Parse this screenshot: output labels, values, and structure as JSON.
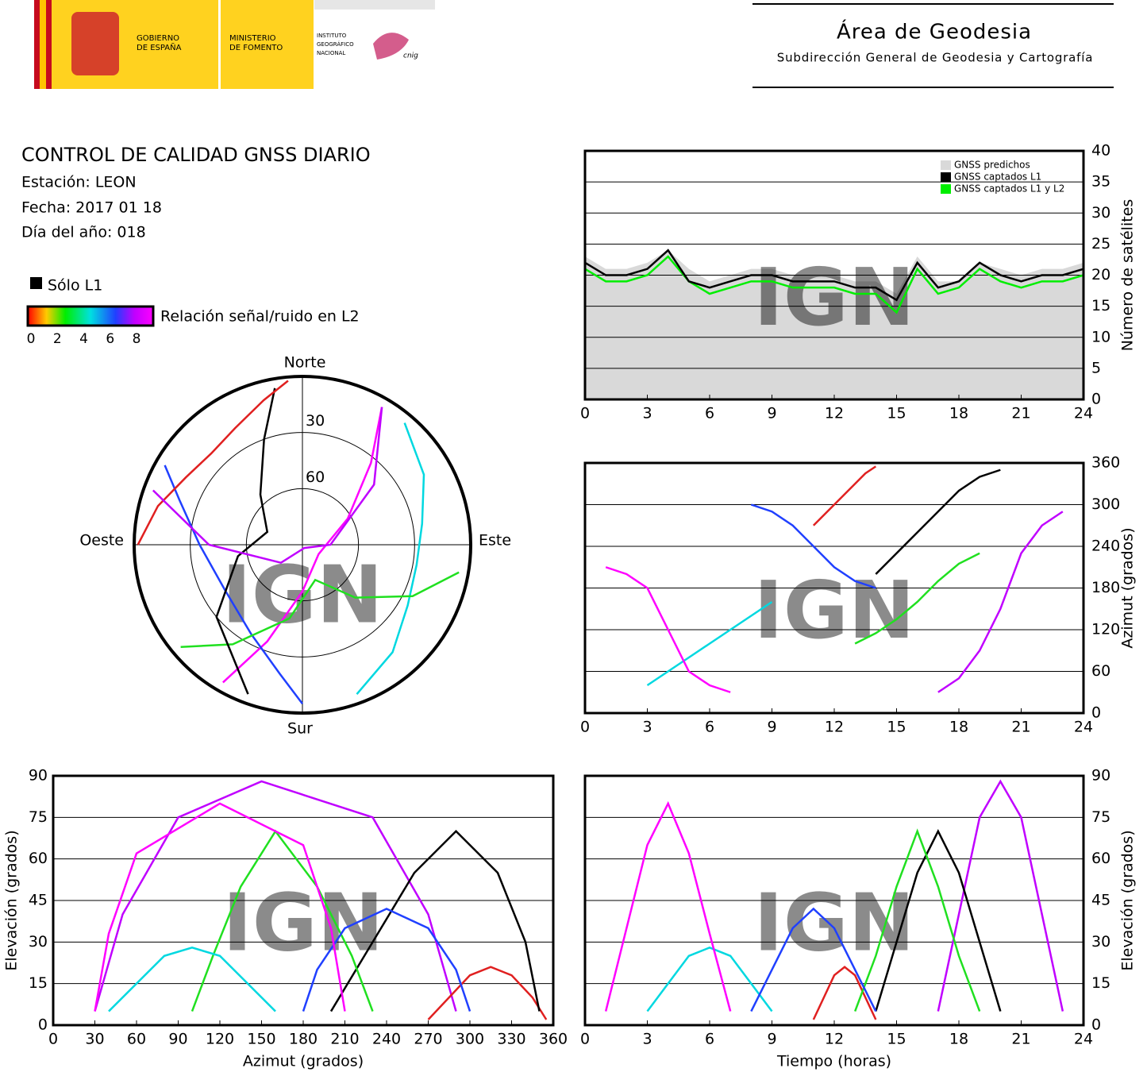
{
  "header": {
    "gobierno": [
      "GOBIERNO",
      "DE ESPAÑA"
    ],
    "ministerio": [
      "MINISTERIO",
      "DE FOMENTO"
    ],
    "instituto": [
      "INSTITUTO",
      "GEOGRÁFICO",
      "NACIONAL"
    ],
    "cnig": "cnig",
    "area": "Área de Geodesia",
    "subdireccion": "Subdirección General de Geodesia y Cartografía"
  },
  "report": {
    "title": "CONTROL DE CALIDAD GNSS DIARIO",
    "station": "Estación: LEON",
    "date": "Fecha: 2017 01 18",
    "doy": "Día del año: 018",
    "l1_only": "Sólo L1",
    "snr_label": "Relación señal/ruido en L2",
    "snr_ticks": [
      0,
      2,
      4,
      6,
      8
    ]
  },
  "watermark": "IGN",
  "chart_data": [
    {
      "type": "line",
      "y_label": "Número de satélites",
      "yaxis": "right",
      "x": [
        0,
        1,
        2,
        3,
        4,
        5,
        6,
        7,
        8,
        9,
        10,
        11,
        12,
        13,
        14,
        15,
        16,
        17,
        18,
        19,
        20,
        21,
        22,
        23,
        24
      ],
      "series": [
        {
          "name": "GNSS predichos",
          "color": "#d9d9d9",
          "fill": true,
          "values": [
            23,
            21,
            21,
            22,
            24,
            21,
            19,
            20,
            21,
            21,
            20,
            20,
            20,
            19,
            19,
            17,
            23,
            19,
            19,
            22,
            21,
            20,
            21,
            21,
            22
          ]
        },
        {
          "name": "GNSS captados L1",
          "color": "#000000",
          "values": [
            22,
            20,
            20,
            21,
            24,
            19,
            18,
            19,
            20,
            20,
            19,
            19,
            19,
            18,
            18,
            16,
            22,
            18,
            19,
            22,
            20,
            19,
            20,
            20,
            21
          ]
        },
        {
          "name": "GNSS captados L1 y L2",
          "color": "#00ee00",
          "values": [
            21,
            19,
            19,
            20,
            23,
            19,
            17,
            18,
            19,
            19,
            18,
            18,
            18,
            17,
            17,
            14,
            21,
            17,
            18,
            21,
            19,
            18,
            19,
            19,
            20
          ]
        }
      ],
      "xlim": [
        0,
        24
      ],
      "xticks": [
        0,
        3,
        6,
        9,
        12,
        15,
        18,
        21,
        24
      ],
      "ylim": [
        0,
        40
      ],
      "yticks": [
        0,
        5,
        10,
        15,
        20,
        25,
        30,
        35,
        40
      ],
      "grid": true,
      "legend": "upper right"
    },
    {
      "type": "polar",
      "directions": {
        "north": "Norte",
        "south": "Sur",
        "east": "Este",
        "west": "Oeste"
      },
      "rlim": [
        90,
        0
      ],
      "rticks": [
        30,
        60
      ],
      "series": [
        {
          "color": "#ff00ff",
          "x": [
            210,
            200,
            180,
            120,
            60,
            40,
            30
          ],
          "values": [
            5,
            35,
            65,
            80,
            62,
            33,
            5
          ]
        },
        {
          "color": "#2040ff",
          "x": [
            300,
            290,
            270,
            240,
            210,
            190,
            180
          ],
          "values": [
            5,
            20,
            35,
            42,
            35,
            20,
            5
          ]
        },
        {
          "color": "#00d8e0",
          "x": [
            40,
            60,
            80,
            100,
            120,
            140,
            160
          ],
          "values": [
            5,
            15,
            25,
            28,
            25,
            15,
            5
          ]
        },
        {
          "color": "#20e020",
          "x": [
            100,
            115,
            135,
            160,
            190,
            215,
            230
          ],
          "values": [
            5,
            25,
            50,
            70,
            50,
            25,
            5
          ]
        },
        {
          "color": "#000000",
          "x": [
            200,
            230,
            260,
            290,
            320,
            340,
            350
          ],
          "values": [
            5,
            30,
            55,
            70,
            55,
            30,
            5
          ]
        },
        {
          "color": "#e02020",
          "x": [
            270,
            285,
            300,
            315,
            330,
            345,
            355
          ],
          "values": [
            2,
            10,
            18,
            21,
            18,
            10,
            2
          ]
        },
        {
          "color": "#c000ff",
          "x": [
            30,
            50,
            90,
            150,
            230,
            270,
            290
          ],
          "values": [
            5,
            40,
            75,
            88,
            75,
            40,
            5
          ]
        }
      ]
    },
    {
      "type": "line",
      "y_label": "Azimut (grados)",
      "yaxis": "right",
      "series": [
        {
          "color": "#ff00ff",
          "x": [
            1,
            2,
            3,
            4,
            5,
            6,
            7
          ],
          "values": [
            210,
            200,
            180,
            120,
            60,
            40,
            30
          ]
        },
        {
          "color": "#2040ff",
          "x": [
            8,
            9,
            10,
            11,
            12,
            13,
            14
          ],
          "values": [
            300,
            290,
            270,
            240,
            210,
            190,
            180
          ]
        },
        {
          "color": "#00d8e0",
          "x": [
            3,
            4,
            5,
            6,
            7,
            8,
            9
          ],
          "values": [
            40,
            60,
            80,
            100,
            120,
            140,
            160
          ]
        },
        {
          "color": "#20e020",
          "x": [
            13,
            14,
            15,
            16,
            17,
            18,
            19
          ],
          "values": [
            100,
            115,
            135,
            160,
            190,
            215,
            230
          ]
        },
        {
          "color": "#000000",
          "x": [
            14,
            15,
            16,
            17,
            18,
            19,
            20
          ],
          "values": [
            200,
            230,
            260,
            290,
            320,
            340,
            350
          ]
        },
        {
          "color": "#e02020",
          "x": [
            11,
            11.5,
            12,
            12.5,
            13,
            13.5,
            14
          ],
          "values": [
            270,
            285,
            300,
            315,
            330,
            345,
            355
          ]
        },
        {
          "color": "#c000ff",
          "x": [
            17,
            18,
            19,
            20,
            21,
            22,
            23
          ],
          "values": [
            30,
            50,
            90,
            150,
            230,
            270,
            290
          ]
        }
      ],
      "xlim": [
        0,
        24
      ],
      "xticks": [
        0,
        3,
        6,
        9,
        12,
        15,
        18,
        21,
        24
      ],
      "ylim": [
        0,
        360
      ],
      "yticks": [
        0,
        60,
        120,
        180,
        240,
        300,
        360
      ],
      "grid": true
    },
    {
      "type": "line",
      "x_label": "Azimut (grados)",
      "y_label": "Elevación (grados)",
      "yaxis": "left",
      "series": [
        {
          "color": "#ff00ff",
          "x": [
            210,
            200,
            180,
            120,
            60,
            40,
            30
          ],
          "values": [
            5,
            35,
            65,
            80,
            62,
            33,
            5
          ]
        },
        {
          "color": "#2040ff",
          "x": [
            300,
            290,
            270,
            240,
            210,
            190,
            180
          ],
          "values": [
            5,
            20,
            35,
            42,
            35,
            20,
            5
          ]
        },
        {
          "color": "#00d8e0",
          "x": [
            40,
            60,
            80,
            100,
            120,
            140,
            160
          ],
          "values": [
            5,
            15,
            25,
            28,
            25,
            15,
            5
          ]
        },
        {
          "color": "#20e020",
          "x": [
            100,
            115,
            135,
            160,
            190,
            215,
            230
          ],
          "values": [
            5,
            25,
            50,
            70,
            50,
            25,
            5
          ]
        },
        {
          "color": "#000000",
          "x": [
            200,
            230,
            260,
            290,
            320,
            340,
            350
          ],
          "values": [
            5,
            30,
            55,
            70,
            55,
            30,
            5
          ]
        },
        {
          "color": "#e02020",
          "x": [
            270,
            285,
            300,
            315,
            330,
            345,
            355
          ],
          "values": [
            2,
            10,
            18,
            21,
            18,
            10,
            2
          ]
        },
        {
          "color": "#c000ff",
          "x": [
            30,
            50,
            90,
            150,
            230,
            270,
            290
          ],
          "values": [
            5,
            40,
            75,
            88,
            75,
            40,
            5
          ]
        }
      ],
      "xlim": [
        0,
        360
      ],
      "xticks": [
        0,
        30,
        60,
        90,
        120,
        150,
        180,
        210,
        240,
        270,
        300,
        330,
        360
      ],
      "ylim": [
        0,
        90
      ],
      "yticks": [
        0,
        15,
        30,
        45,
        60,
        75,
        90
      ],
      "grid": true
    },
    {
      "type": "line",
      "x_label": "Tiempo (horas)",
      "y_label": "Elevación (grados)",
      "yaxis": "right",
      "series": [
        {
          "color": "#ff00ff",
          "x": [
            1,
            2,
            3,
            4,
            5,
            6,
            7
          ],
          "values": [
            5,
            35,
            65,
            80,
            62,
            33,
            5
          ]
        },
        {
          "color": "#2040ff",
          "x": [
            8,
            9,
            10,
            11,
            12,
            13,
            14
          ],
          "values": [
            5,
            20,
            35,
            42,
            35,
            20,
            5
          ]
        },
        {
          "color": "#00d8e0",
          "x": [
            3,
            4,
            5,
            6,
            7,
            8,
            9
          ],
          "values": [
            5,
            15,
            25,
            28,
            25,
            15,
            5
          ]
        },
        {
          "color": "#20e020",
          "x": [
            13,
            14,
            15,
            16,
            17,
            18,
            19
          ],
          "values": [
            5,
            25,
            50,
            70,
            50,
            25,
            5
          ]
        },
        {
          "color": "#000000",
          "x": [
            14,
            15,
            16,
            17,
            18,
            19,
            20
          ],
          "values": [
            5,
            30,
            55,
            70,
            55,
            30,
            5
          ]
        },
        {
          "color": "#e02020",
          "x": [
            11,
            11.5,
            12,
            12.5,
            13,
            13.5,
            14
          ],
          "values": [
            2,
            10,
            18,
            21,
            18,
            10,
            2
          ]
        },
        {
          "color": "#c000ff",
          "x": [
            17,
            18,
            19,
            20,
            21,
            22,
            23
          ],
          "values": [
            5,
            40,
            75,
            88,
            75,
            40,
            5
          ]
        }
      ],
      "xlim": [
        0,
        24
      ],
      "xticks": [
        0,
        3,
        6,
        9,
        12,
        15,
        18,
        21,
        24
      ],
      "ylim": [
        0,
        90
      ],
      "yticks": [
        0,
        15,
        30,
        45,
        60,
        75,
        90
      ],
      "grid": true
    }
  ]
}
